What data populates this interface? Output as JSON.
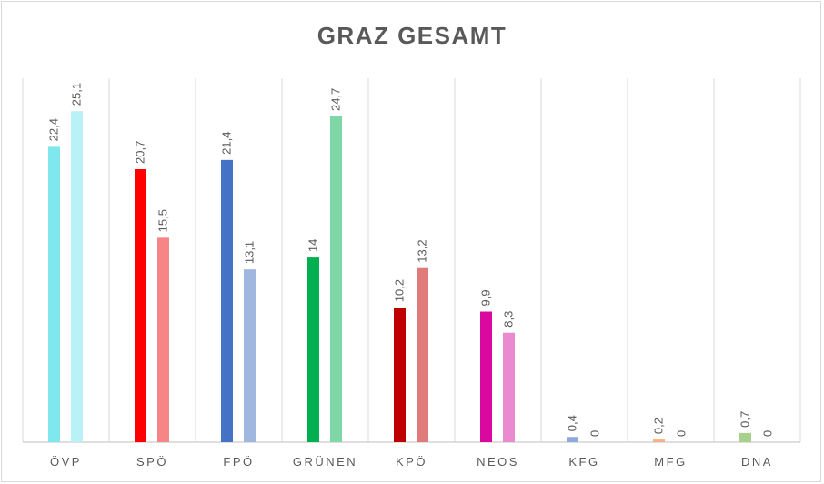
{
  "chart_data": {
    "type": "bar",
    "title": "GRAZ GESAMT",
    "xlabel": "",
    "ylabel": "",
    "ylim": [
      0,
      27.6
    ],
    "grid": "vertical-separators",
    "legend": "none",
    "categories": [
      "ÖVP",
      "SPÖ",
      "FPÖ",
      "GRÜNEN",
      "KPÖ",
      "NEOS",
      "KFG",
      "MFG",
      "DNA"
    ],
    "series": [
      {
        "values": [
          22.4,
          20.7,
          21.4,
          14,
          10.2,
          9.9,
          0.4,
          0.2,
          0.7
        ],
        "labels": [
          "22,4",
          "20,7",
          "21,4",
          "14",
          "10,2",
          "9,9",
          "0,4",
          "0,2",
          "0,7"
        ]
      },
      {
        "values": [
          25.1,
          15.5,
          13.1,
          24.7,
          13.2,
          8.3,
          0,
          0,
          0
        ],
        "labels": [
          "25,1",
          "15,5",
          "13,1",
          "24,7",
          "13,2",
          "8,3",
          "0",
          "0",
          "0"
        ]
      }
    ],
    "colors": [
      [
        "#7fe8ee",
        "#b9f2f6"
      ],
      [
        "#ff0000",
        "#f78585"
      ],
      [
        "#4472c4",
        "#a0b8e0"
      ],
      [
        "#00b050",
        "#7fd6a6"
      ],
      [
        "#c00000",
        "#e07b7b"
      ],
      [
        "#d9089f",
        "#ea8ad0"
      ],
      [
        "#8eaadb",
        "#c5d4ee"
      ],
      [
        "#f4b183",
        "#f8d3b9"
      ],
      [
        "#a9d18e",
        "#d3e8c5"
      ]
    ]
  }
}
